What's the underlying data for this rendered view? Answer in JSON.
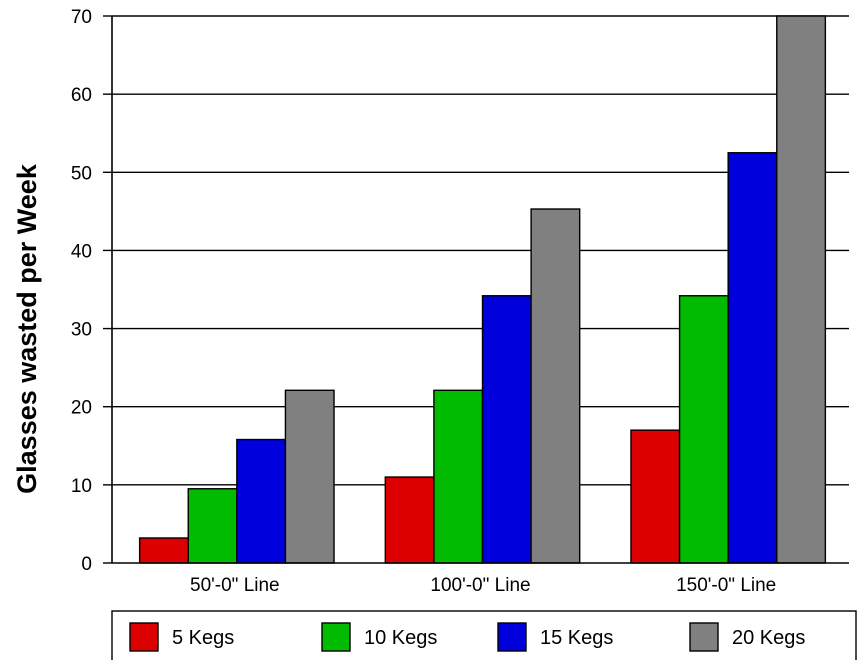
{
  "chart_data": {
    "type": "bar",
    "ylabel": "Glasses wasted per Week",
    "ylim": [
      0,
      70
    ],
    "yticks": [
      0,
      10,
      20,
      30,
      40,
      50,
      60,
      70
    ],
    "categories": [
      "50'-0\" Line",
      "100'-0\" Line",
      "150'-0\" Line"
    ],
    "series": [
      {
        "name": "5 Kegs",
        "color": "#dd0000",
        "values": [
          3.2,
          11,
          17
        ]
      },
      {
        "name": "10 Kegs",
        "color": "#00bb00",
        "values": [
          9.5,
          22.1,
          34.2
        ]
      },
      {
        "name": "15 Kegs",
        "color": "#0000dd",
        "values": [
          15.8,
          34.2,
          52.5
        ]
      },
      {
        "name": "20 Kegs",
        "color": "#808080",
        "values": [
          22.1,
          45.3,
          70
        ]
      }
    ],
    "grid": true,
    "legend": "bottom"
  }
}
